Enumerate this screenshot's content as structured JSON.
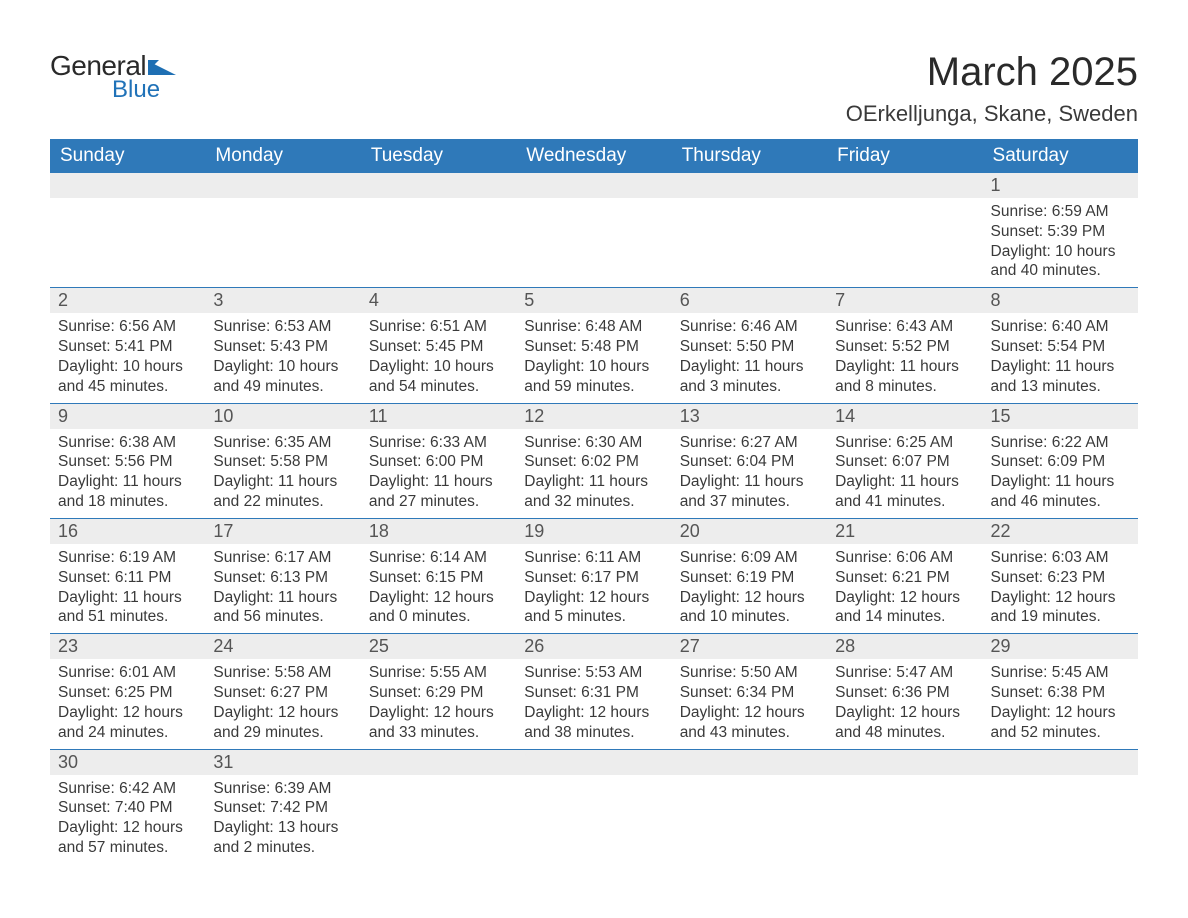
{
  "logo": {
    "text_general": "General",
    "text_blue": "Blue",
    "shape_color": "#1e6fb3"
  },
  "header": {
    "month_title": "March 2025",
    "location": "OErkelljunga, Skane, Sweden"
  },
  "colors": {
    "header_bg": "#2f79b9",
    "row_divider": "#2f79b9",
    "daynum_bg": "#ededed",
    "text": "#3a3a3a",
    "background": "#ffffff"
  },
  "calendar": {
    "day_headers": [
      "Sunday",
      "Monday",
      "Tuesday",
      "Wednesday",
      "Thursday",
      "Friday",
      "Saturday"
    ],
    "weeks": [
      [
        null,
        null,
        null,
        null,
        null,
        null,
        {
          "n": "1",
          "sunrise": "Sunrise: 6:59 AM",
          "sunset": "Sunset: 5:39 PM",
          "daylight": "Daylight: 10 hours and 40 minutes."
        }
      ],
      [
        {
          "n": "2",
          "sunrise": "Sunrise: 6:56 AM",
          "sunset": "Sunset: 5:41 PM",
          "daylight": "Daylight: 10 hours and 45 minutes."
        },
        {
          "n": "3",
          "sunrise": "Sunrise: 6:53 AM",
          "sunset": "Sunset: 5:43 PM",
          "daylight": "Daylight: 10 hours and 49 minutes."
        },
        {
          "n": "4",
          "sunrise": "Sunrise: 6:51 AM",
          "sunset": "Sunset: 5:45 PM",
          "daylight": "Daylight: 10 hours and 54 minutes."
        },
        {
          "n": "5",
          "sunrise": "Sunrise: 6:48 AM",
          "sunset": "Sunset: 5:48 PM",
          "daylight": "Daylight: 10 hours and 59 minutes."
        },
        {
          "n": "6",
          "sunrise": "Sunrise: 6:46 AM",
          "sunset": "Sunset: 5:50 PM",
          "daylight": "Daylight: 11 hours and 3 minutes."
        },
        {
          "n": "7",
          "sunrise": "Sunrise: 6:43 AM",
          "sunset": "Sunset: 5:52 PM",
          "daylight": "Daylight: 11 hours and 8 minutes."
        },
        {
          "n": "8",
          "sunrise": "Sunrise: 6:40 AM",
          "sunset": "Sunset: 5:54 PM",
          "daylight": "Daylight: 11 hours and 13 minutes."
        }
      ],
      [
        {
          "n": "9",
          "sunrise": "Sunrise: 6:38 AM",
          "sunset": "Sunset: 5:56 PM",
          "daylight": "Daylight: 11 hours and 18 minutes."
        },
        {
          "n": "10",
          "sunrise": "Sunrise: 6:35 AM",
          "sunset": "Sunset: 5:58 PM",
          "daylight": "Daylight: 11 hours and 22 minutes."
        },
        {
          "n": "11",
          "sunrise": "Sunrise: 6:33 AM",
          "sunset": "Sunset: 6:00 PM",
          "daylight": "Daylight: 11 hours and 27 minutes."
        },
        {
          "n": "12",
          "sunrise": "Sunrise: 6:30 AM",
          "sunset": "Sunset: 6:02 PM",
          "daylight": "Daylight: 11 hours and 32 minutes."
        },
        {
          "n": "13",
          "sunrise": "Sunrise: 6:27 AM",
          "sunset": "Sunset: 6:04 PM",
          "daylight": "Daylight: 11 hours and 37 minutes."
        },
        {
          "n": "14",
          "sunrise": "Sunrise: 6:25 AM",
          "sunset": "Sunset: 6:07 PM",
          "daylight": "Daylight: 11 hours and 41 minutes."
        },
        {
          "n": "15",
          "sunrise": "Sunrise: 6:22 AM",
          "sunset": "Sunset: 6:09 PM",
          "daylight": "Daylight: 11 hours and 46 minutes."
        }
      ],
      [
        {
          "n": "16",
          "sunrise": "Sunrise: 6:19 AM",
          "sunset": "Sunset: 6:11 PM",
          "daylight": "Daylight: 11 hours and 51 minutes."
        },
        {
          "n": "17",
          "sunrise": "Sunrise: 6:17 AM",
          "sunset": "Sunset: 6:13 PM",
          "daylight": "Daylight: 11 hours and 56 minutes."
        },
        {
          "n": "18",
          "sunrise": "Sunrise: 6:14 AM",
          "sunset": "Sunset: 6:15 PM",
          "daylight": "Daylight: 12 hours and 0 minutes."
        },
        {
          "n": "19",
          "sunrise": "Sunrise: 6:11 AM",
          "sunset": "Sunset: 6:17 PM",
          "daylight": "Daylight: 12 hours and 5 minutes."
        },
        {
          "n": "20",
          "sunrise": "Sunrise: 6:09 AM",
          "sunset": "Sunset: 6:19 PM",
          "daylight": "Daylight: 12 hours and 10 minutes."
        },
        {
          "n": "21",
          "sunrise": "Sunrise: 6:06 AM",
          "sunset": "Sunset: 6:21 PM",
          "daylight": "Daylight: 12 hours and 14 minutes."
        },
        {
          "n": "22",
          "sunrise": "Sunrise: 6:03 AM",
          "sunset": "Sunset: 6:23 PM",
          "daylight": "Daylight: 12 hours and 19 minutes."
        }
      ],
      [
        {
          "n": "23",
          "sunrise": "Sunrise: 6:01 AM",
          "sunset": "Sunset: 6:25 PM",
          "daylight": "Daylight: 12 hours and 24 minutes."
        },
        {
          "n": "24",
          "sunrise": "Sunrise: 5:58 AM",
          "sunset": "Sunset: 6:27 PM",
          "daylight": "Daylight: 12 hours and 29 minutes."
        },
        {
          "n": "25",
          "sunrise": "Sunrise: 5:55 AM",
          "sunset": "Sunset: 6:29 PM",
          "daylight": "Daylight: 12 hours and 33 minutes."
        },
        {
          "n": "26",
          "sunrise": "Sunrise: 5:53 AM",
          "sunset": "Sunset: 6:31 PM",
          "daylight": "Daylight: 12 hours and 38 minutes."
        },
        {
          "n": "27",
          "sunrise": "Sunrise: 5:50 AM",
          "sunset": "Sunset: 6:34 PM",
          "daylight": "Daylight: 12 hours and 43 minutes."
        },
        {
          "n": "28",
          "sunrise": "Sunrise: 5:47 AM",
          "sunset": "Sunset: 6:36 PM",
          "daylight": "Daylight: 12 hours and 48 minutes."
        },
        {
          "n": "29",
          "sunrise": "Sunrise: 5:45 AM",
          "sunset": "Sunset: 6:38 PM",
          "daylight": "Daylight: 12 hours and 52 minutes."
        }
      ],
      [
        {
          "n": "30",
          "sunrise": "Sunrise: 6:42 AM",
          "sunset": "Sunset: 7:40 PM",
          "daylight": "Daylight: 12 hours and 57 minutes."
        },
        {
          "n": "31",
          "sunrise": "Sunrise: 6:39 AM",
          "sunset": "Sunset: 7:42 PM",
          "daylight": "Daylight: 13 hours and 2 minutes."
        },
        null,
        null,
        null,
        null,
        null
      ]
    ]
  }
}
